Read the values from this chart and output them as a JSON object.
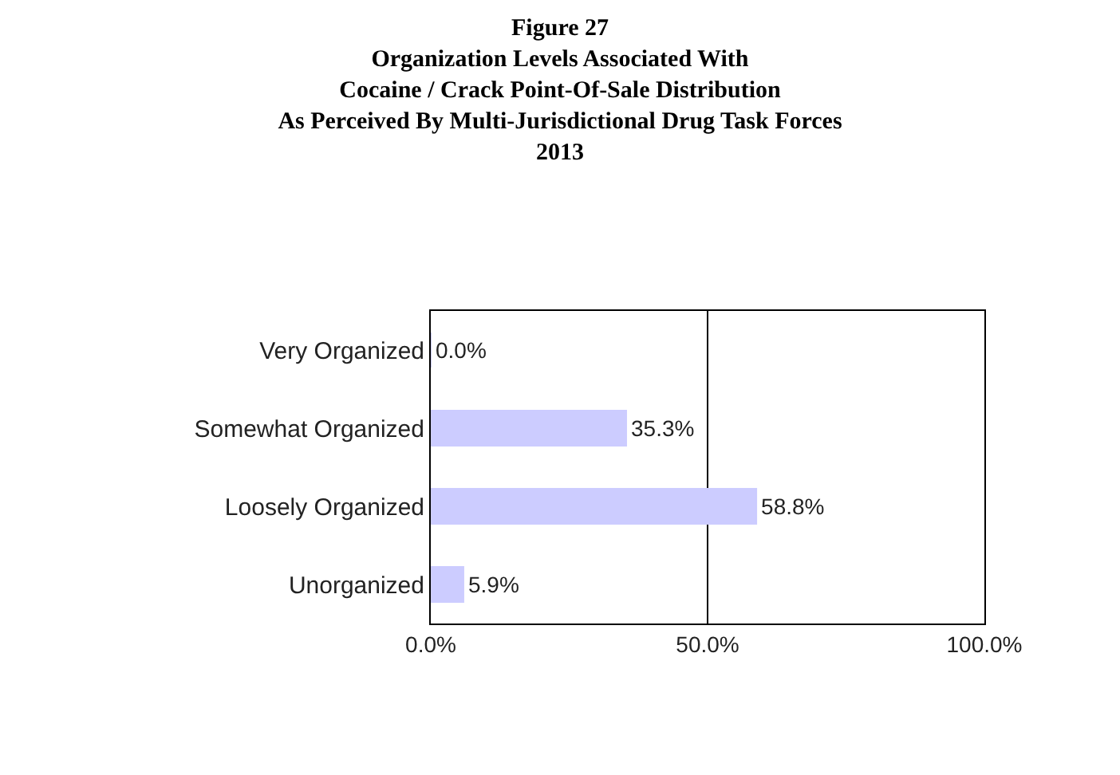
{
  "chart_data": {
    "type": "bar",
    "orientation": "horizontal",
    "title": "Figure 27\nOrganization Levels Associated With\nCocaine / Crack Point-Of-Sale Distribution\nAs Perceived By Multi-Jurisdictional Drug Task Forces\n2013",
    "categories": [
      "Very Organized",
      "Somewhat Organized",
      "Loosely Organized",
      "Unorganized"
    ],
    "values": [
      0.0,
      35.3,
      58.8,
      5.9
    ],
    "value_labels": [
      "0.0%",
      "35.3%",
      "58.8%",
      "5.9%"
    ],
    "color": "#ccccff",
    "xlim": [
      0,
      100
    ],
    "xticks": [
      {
        "value": 0,
        "label": "0.0%"
      },
      {
        "value": 50,
        "label": "50.0%"
      },
      {
        "value": 100,
        "label": "100.0%"
      }
    ],
    "grid": "x",
    "legend": false
  }
}
